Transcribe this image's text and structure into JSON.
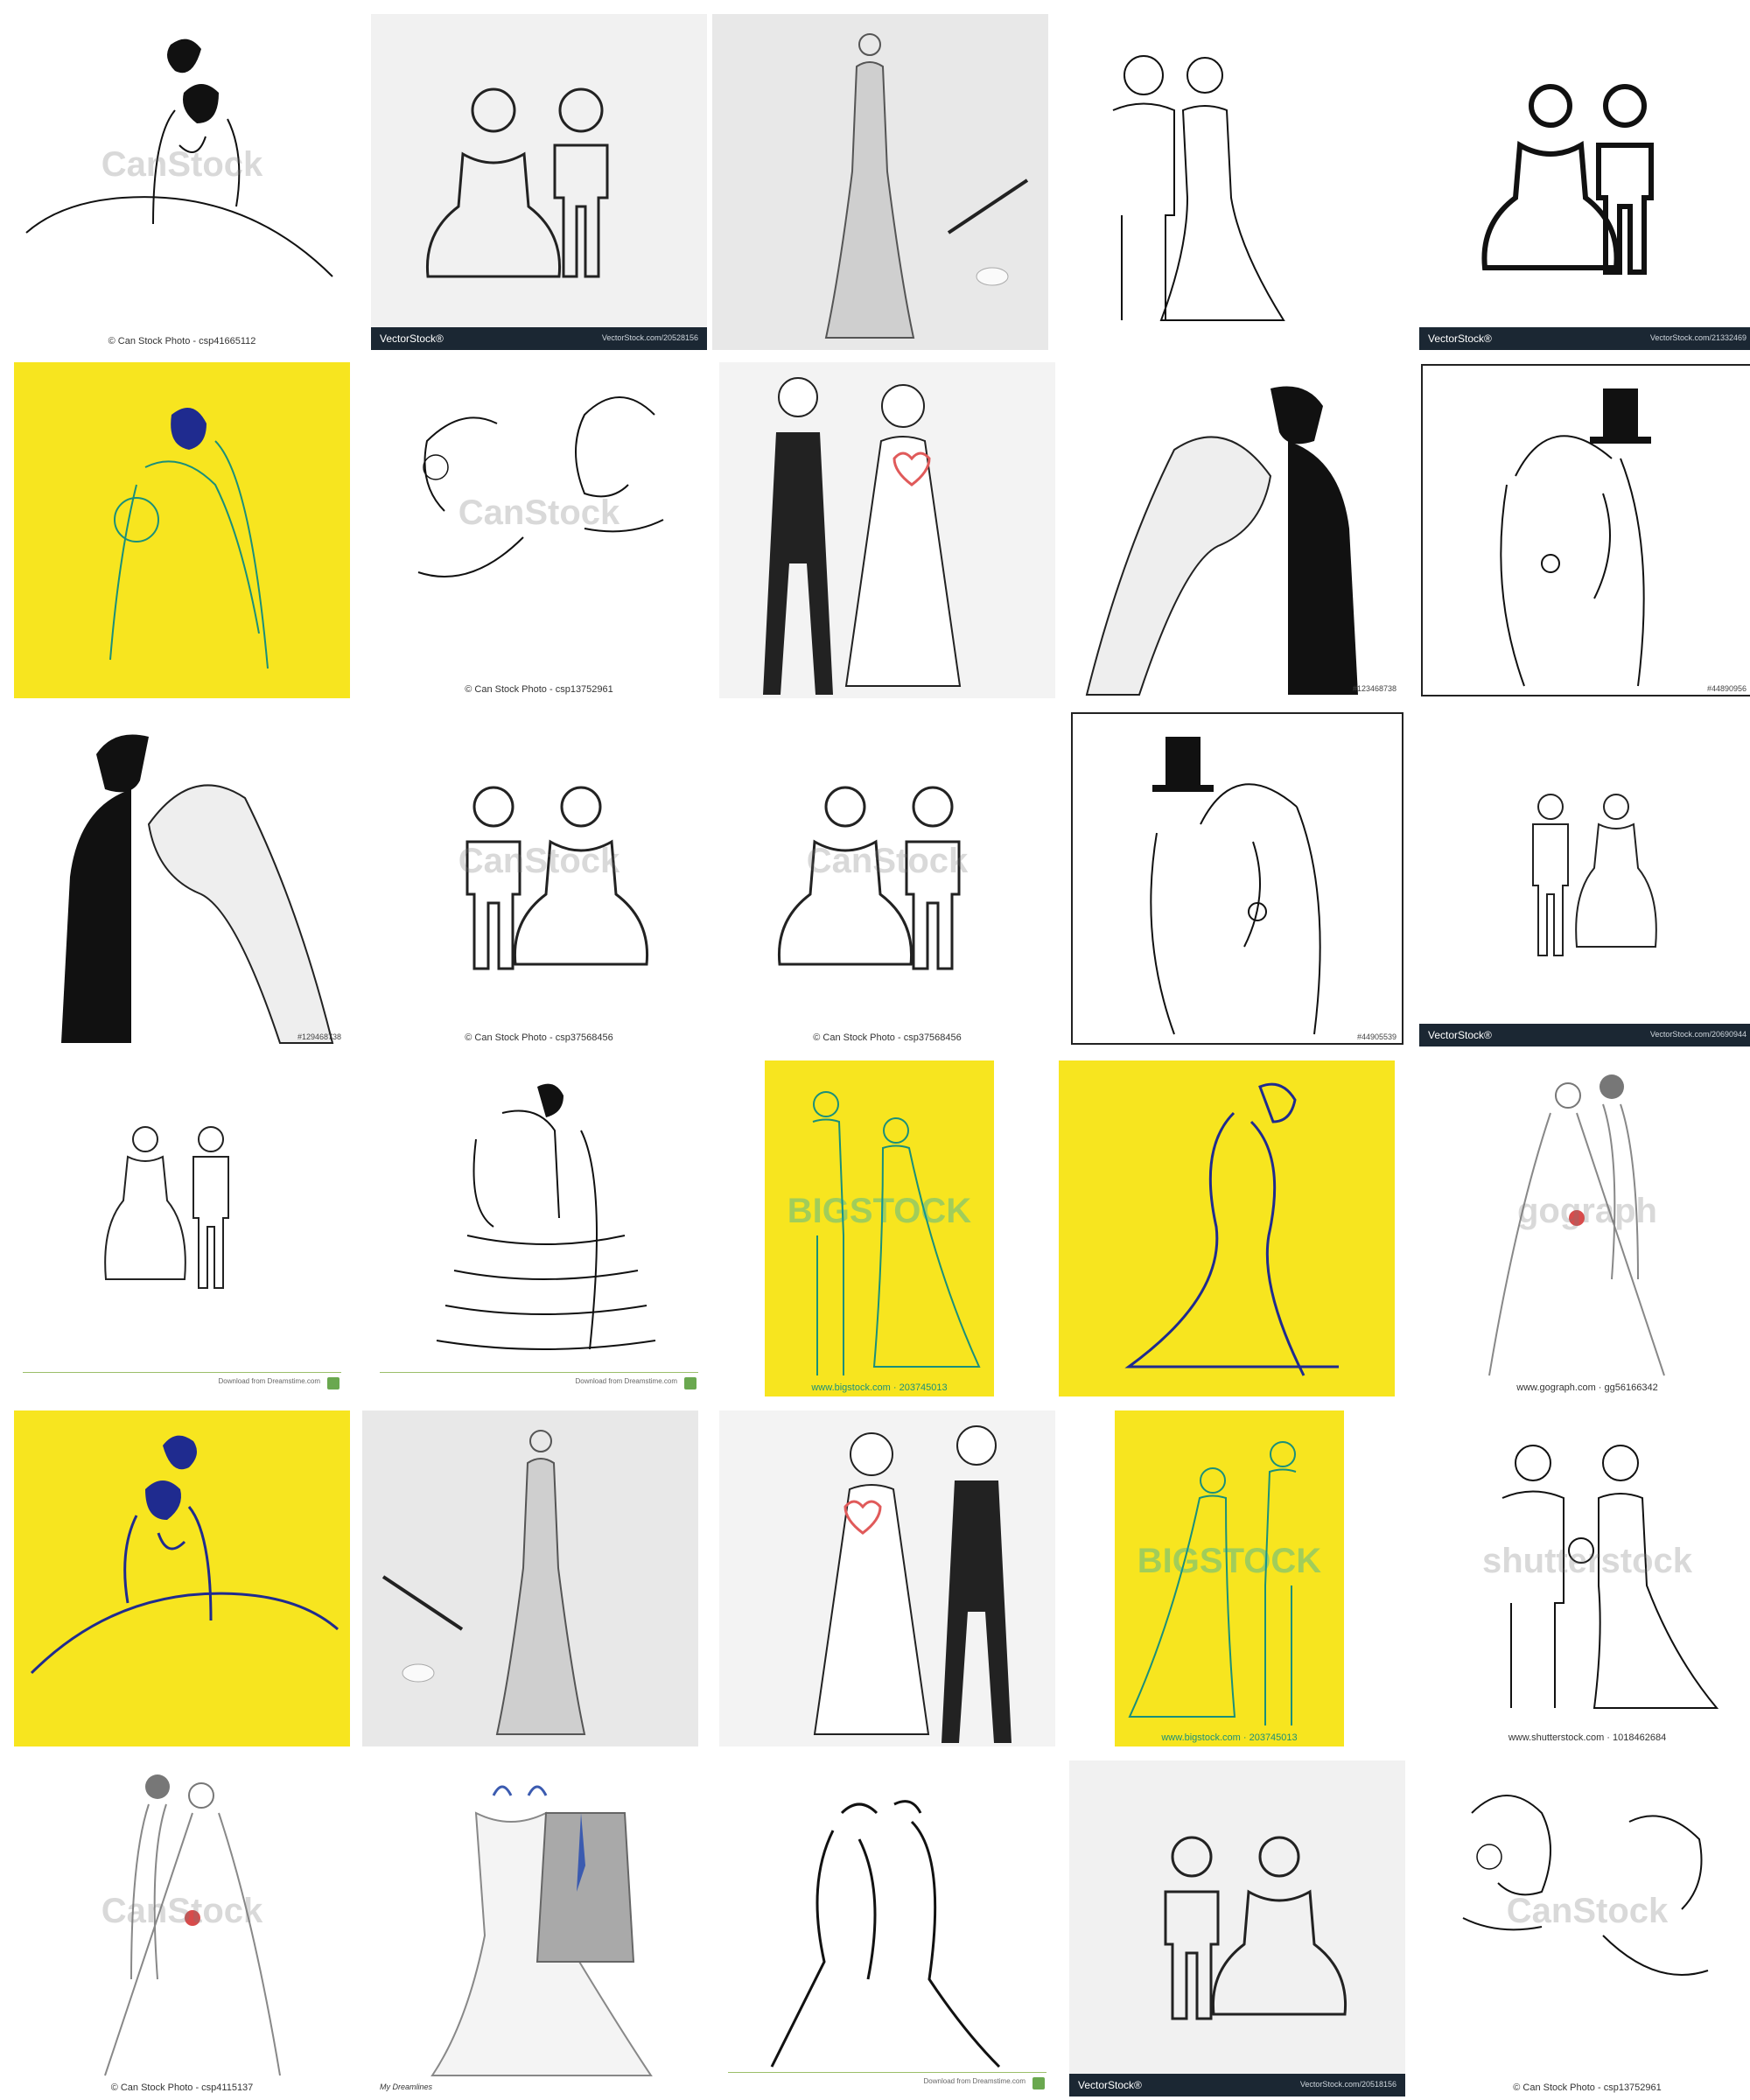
{
  "gallery": {
    "tiles": [
      {
        "caption": "© Can Stock Photo - csp41665112",
        "watermark": "CanStock"
      },
      {
        "brand": "VectorStock®",
        "url": "VectorStock.com/20528156"
      },
      {},
      {},
      {
        "brand": "VectorStock®",
        "url": "VectorStock.com/21332469"
      },
      {},
      {
        "caption": "© Can Stock Photo - csp13752961",
        "watermark": "CanStock"
      },
      {},
      {
        "tag": "#123468738"
      },
      {
        "tag": "#44890956"
      },
      {
        "tag": "#129468738"
      },
      {
        "caption": "© Can Stock Photo - csp37568456",
        "watermark": "CanStock"
      },
      {
        "caption": "© Can Stock Photo - csp37568456",
        "watermark": "CanStock"
      },
      {
        "tag": "#44905539"
      },
      {
        "brand": "VectorStock®",
        "url": "VectorStock.com/20690944"
      },
      {
        "source": "Download from Dreamstime.com"
      },
      {
        "source": "Download from Dreamstime.com"
      },
      {
        "caption": "www.bigstock.com · 203745013",
        "watermark": "BIGSTOCK"
      },
      {},
      {
        "caption": "www.gograph.com · gg56166342",
        "watermark": "gograph"
      },
      {},
      {},
      {},
      {
        "caption": "www.bigstock.com · 203745013",
        "watermark": "BIGSTOCK"
      },
      {
        "caption": "www.shutterstock.com · 1018462684",
        "watermark": "shutterstock"
      },
      {
        "caption": "© Can Stock Photo - csp4115137",
        "watermark": "CanStock"
      },
      {
        "caption": "My Dreamlines"
      },
      {
        "source": "Download from Dreamstime.com"
      },
      {
        "brand": "VectorStock®",
        "url": "VectorStock.com/20518156"
      },
      {
        "caption": "© Can Stock Photo - csp13752961",
        "watermark": "CanStock"
      }
    ]
  },
  "colors": {
    "yellow": "#f7e51f",
    "ink": "#111111",
    "navy": "#1f2b8f",
    "teal": "#1a8f7a",
    "vectorstock_bar": "#1b2733",
    "heart": "#e05a5a"
  }
}
